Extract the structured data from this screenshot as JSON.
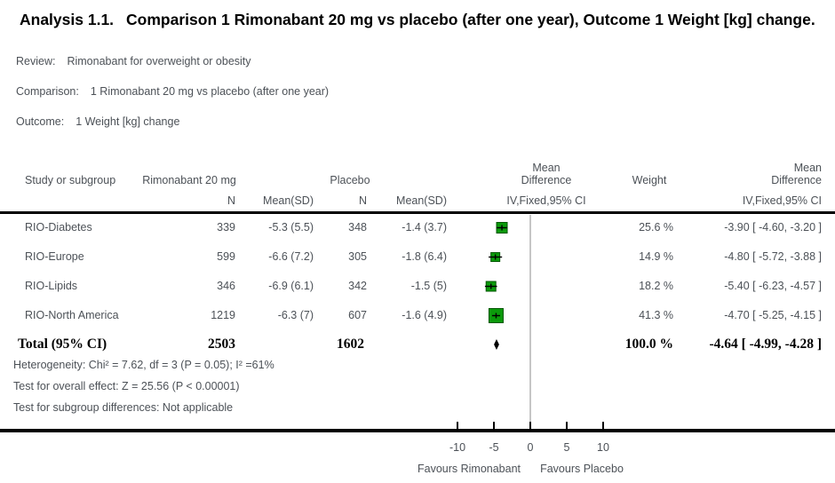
{
  "title": {
    "prefix": "Analysis 1.1.",
    "main": "Comparison 1 Rimonabant 20 mg vs placebo (after one year), Outcome 1 Weight [kg] change."
  },
  "meta": {
    "review_label": "Review:",
    "review_value": "Rimonabant for overweight or obesity",
    "comparison_label": "Comparison:",
    "comparison_value": "1 Rimonabant 20 mg vs placebo (after one year)",
    "outcome_label": "Outcome:",
    "outcome_value": "1 Weight [kg] change"
  },
  "table": {
    "header": {
      "study": "Study or subgroup",
      "treatment_group": "Rimonabant 20 mg",
      "control_group": "Placebo",
      "n1": "N",
      "mean_sd1": "Mean(SD)",
      "n2": "N",
      "mean_sd2": "Mean(SD)",
      "md_line1": "Mean",
      "md_line2": "Difference",
      "ci_method_plot": "IV,Fixed,95% CI",
      "weight": "Weight",
      "md_line1_right": "Mean",
      "md_line2_right": "Difference",
      "ci_method_right": "IV,Fixed,95% CI"
    },
    "rows": [
      {
        "study": "RIO-Diabetes",
        "n1": "339",
        "mean1": "-5.3 (5.5)",
        "n2": "348",
        "mean2": "-1.4 (3.7)",
        "weight": "25.6 %",
        "md": "-3.90 [ -4.60, -3.20 ]"
      },
      {
        "study": "RIO-Europe",
        "n1": "599",
        "mean1": "-6.6 (7.2)",
        "n2": "305",
        "mean2": "-1.8 (6.4)",
        "weight": "14.9 %",
        "md": "-4.80 [ -5.72, -3.88 ]"
      },
      {
        "study": "RIO-Lipids",
        "n1": "346",
        "mean1": "-6.9 (6.1)",
        "n2": "342",
        "mean2": "-1.5 (5)",
        "weight": "18.2 %",
        "md": "-5.40 [ -6.23, -4.57 ]"
      },
      {
        "study": "RIO-North America",
        "n1": "1219",
        "mean1": "-6.3 (7)",
        "n2": "607",
        "mean2": "-1.6 (4.9)",
        "weight": "41.3 %",
        "md": "-4.70 [ -5.25, -4.15 ]"
      }
    ],
    "total": {
      "label": "Total (95% CI)",
      "n1": "2503",
      "n2": "1602",
      "weight": "100.0 %",
      "md": "-4.64 [ -4.99, -4.28 ]"
    },
    "footnotes": [
      "Heterogeneity: Chi² = 7.62, df = 3 (P = 0.05); I² =61%",
      "Test for overall effect: Z = 25.56 (P < 0.00001)",
      "Test for subgroup differences: Not applicable"
    ]
  },
  "chart_data": {
    "type": "forest",
    "effect_measure": "Mean Difference, IV,Fixed,95% CI",
    "x_ticks": [
      -10,
      -5,
      0,
      5,
      10
    ],
    "xlim": [
      -12.5,
      12.5
    ],
    "favours_left": "Favours Rimonabant",
    "favours_right": "Favours Placebo",
    "studies": [
      {
        "name": "RIO-Diabetes",
        "estimate": -3.9,
        "ci_low": -4.6,
        "ci_high": -3.2,
        "weight_pct": 25.6
      },
      {
        "name": "RIO-Europe",
        "estimate": -4.8,
        "ci_low": -5.72,
        "ci_high": -3.88,
        "weight_pct": 14.9
      },
      {
        "name": "RIO-Lipids",
        "estimate": -5.4,
        "ci_low": -6.23,
        "ci_high": -4.57,
        "weight_pct": 18.2
      },
      {
        "name": "RIO-North America",
        "estimate": -4.7,
        "ci_low": -5.25,
        "ci_high": -4.15,
        "weight_pct": 41.3
      }
    ],
    "total": {
      "estimate": -4.64,
      "ci_low": -4.99,
      "ci_high": -4.28,
      "weight_pct": 100.0
    },
    "totals": {
      "treatment_n": 2503,
      "control_n": 1602
    },
    "heterogeneity": {
      "chi2": 7.62,
      "df": 3,
      "p": 0.05,
      "i2_pct": 61
    },
    "overall_effect": {
      "z": 25.56,
      "p": "< 0.00001"
    }
  },
  "colors": {
    "marker_fill": "#0b9a0b",
    "marker_border": "#035703",
    "zero_line": "#8c8c8c",
    "axis_line": "#000000",
    "text": "#4c5157"
  }
}
